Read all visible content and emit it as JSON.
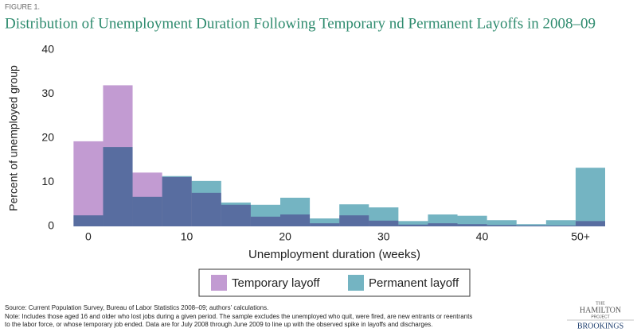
{
  "figure_label": "FIGURE 1.",
  "chart_data": {
    "type": "histogram",
    "title": "Distribution of Unemployment Duration Following Temporary nd Permanent Layoffs in 2008–09",
    "x_label": "Unemployment duration (weeks)",
    "y_label": "Percent of unemployed group",
    "bins": [
      -1.5,
      1.5,
      4.5,
      7.5,
      10.5,
      13.5,
      16.5,
      19.5,
      22.5,
      25.5,
      28.5,
      31.5,
      34.5,
      37.5,
      40.5,
      43.5,
      46.5,
      49.5,
      52.5
    ],
    "series": [
      {
        "name": "Temporary layoff",
        "color": "#c29bd2",
        "values": [
          19.3,
          32,
          12.2,
          11.2,
          7.6,
          4.9,
          2.2,
          2.7,
          0.7,
          2.5,
          1.3,
          0.4,
          0.7,
          0.5,
          0.3,
          0.2,
          0.2,
          1.2
        ]
      },
      {
        "name": "Permanent layoff",
        "color": "#74b4c2",
        "values": [
          2.5,
          18,
          6.7,
          11.4,
          10.3,
          5.4,
          4.9,
          6.5,
          1.8,
          5.0,
          4.3,
          1.2,
          2.7,
          2.4,
          1.4,
          0.5,
          1.4,
          13.3
        ]
      }
    ],
    "xlim": [
      -2.5,
      52.5
    ],
    "xticks": [
      0,
      10,
      20,
      30,
      40,
      {
        "value": 50,
        "label": "50+"
      }
    ],
    "ylim": [
      0,
      40
    ],
    "yticks": [
      0,
      10,
      20,
      30,
      40
    ],
    "grid": false,
    "legend": "bottom"
  },
  "source": "Source: Current Population Survey, Bureau of Labor Statistics 2008–09; authors' calculations.",
  "note_lines": [
    "Note: Includes those aged 16 and older who lost jobs during a given period. The sample excludes the unemployed who quit, were fired, are new entrants or reentrants",
    "to the labor force, or whose temporary job ended. Data are for July 2008 through June 2009 to line up with the observed spike in layoffs and discharges."
  ],
  "logo": {
    "the": "THE",
    "name": "HAMILTON",
    "project": "PROJECT",
    "brand": "BROOKINGS"
  }
}
